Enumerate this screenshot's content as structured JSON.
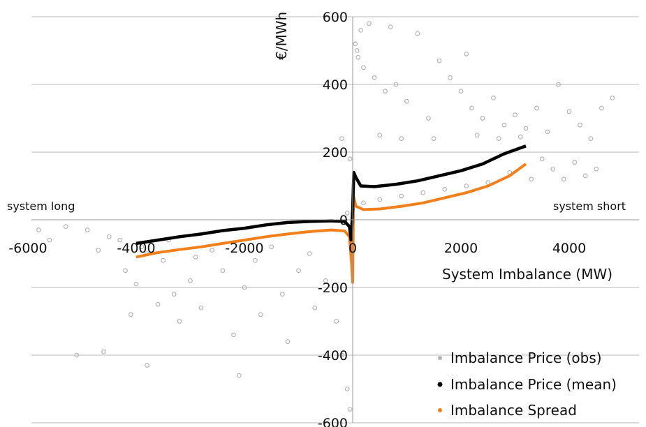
{
  "chart_data": {
    "type": "scatter",
    "title": "",
    "xlabel": "System Imbalance (MW)",
    "ylabel": "€/MWh",
    "xlim": [
      -6000,
      5000
    ],
    "ylim": [
      -600,
      600
    ],
    "x_ticks": [
      -6000,
      -4000,
      -2000,
      0,
      2000,
      4000
    ],
    "x_tick_labels": [
      "-6000",
      "-4000",
      "-2000",
      "0",
      "2000",
      "4000"
    ],
    "y_ticks": [
      -600,
      -400,
      -200,
      0,
      200,
      400,
      600
    ],
    "y_tick_labels": [
      "-600",
      "-400",
      "-200",
      "0",
      "200",
      "400",
      "600"
    ],
    "grid": "horizontal",
    "legend_position": "bottom-right",
    "annotations": {
      "left": "system long",
      "right": "system short"
    },
    "series": [
      {
        "name": "Imbalance Price (obs)",
        "style": "scatter",
        "color": "#b5b5b5",
        "points": [
          [
            -5300,
            -20
          ],
          [
            -4900,
            -30
          ],
          [
            -4700,
            -90
          ],
          [
            -4500,
            -50
          ],
          [
            -4300,
            -60
          ],
          [
            -4200,
            -150
          ],
          [
            -4000,
            -190
          ],
          [
            -3900,
            -80
          ],
          [
            -3800,
            -100
          ],
          [
            -3600,
            -250
          ],
          [
            -3500,
            -120
          ],
          [
            -3400,
            -60
          ],
          [
            -3200,
            -300
          ],
          [
            -3000,
            -180
          ],
          [
            -2900,
            -110
          ],
          [
            -2800,
            -260
          ],
          [
            -2600,
            -90
          ],
          [
            -2400,
            -150
          ],
          [
            -2200,
            -340
          ],
          [
            -2000,
            -200
          ],
          [
            -1800,
            -120
          ],
          [
            -1700,
            -280
          ],
          [
            -1500,
            -80
          ],
          [
            -1300,
            -220
          ],
          [
            -1200,
            -360
          ],
          [
            -1000,
            -150
          ],
          [
            -800,
            -100
          ],
          [
            -700,
            -260
          ],
          [
            -500,
            -180
          ],
          [
            -300,
            -300
          ],
          [
            -200,
            -400
          ],
          [
            -100,
            -500
          ],
          [
            -50,
            -560
          ],
          [
            -4600,
            -390
          ],
          [
            -5100,
            -400
          ],
          [
            -3800,
            -430
          ],
          [
            -2100,
            -460
          ],
          [
            -3300,
            -220
          ],
          [
            -4100,
            -280
          ],
          [
            -5600,
            -60
          ],
          [
            -5800,
            -30
          ],
          [
            50,
            520
          ],
          [
            80,
            500
          ],
          [
            100,
            480
          ],
          [
            200,
            450
          ],
          [
            400,
            420
          ],
          [
            600,
            380
          ],
          [
            800,
            400
          ],
          [
            1000,
            350
          ],
          [
            1200,
            550
          ],
          [
            1400,
            300
          ],
          [
            1600,
            470
          ],
          [
            1800,
            420
          ],
          [
            2000,
            380
          ],
          [
            2100,
            490
          ],
          [
            2200,
            330
          ],
          [
            2400,
            300
          ],
          [
            2600,
            360
          ],
          [
            2800,
            280
          ],
          [
            3000,
            310
          ],
          [
            3200,
            270
          ],
          [
            3400,
            330
          ],
          [
            3600,
            260
          ],
          [
            3800,
            400
          ],
          [
            4000,
            320
          ],
          [
            4200,
            280
          ],
          [
            4400,
            240
          ],
          [
            4600,
            330
          ],
          [
            4800,
            360
          ],
          [
            300,
            580
          ],
          [
            700,
            570
          ],
          [
            150,
            560
          ],
          [
            500,
            250
          ],
          [
            900,
            240
          ],
          [
            1500,
            240
          ],
          [
            2300,
            250
          ],
          [
            2700,
            240
          ],
          [
            3100,
            245
          ],
          [
            3500,
            180
          ],
          [
            3700,
            150
          ],
          [
            3900,
            120
          ],
          [
            4100,
            170
          ],
          [
            4300,
            130
          ],
          [
            4500,
            150
          ],
          [
            3300,
            120
          ],
          [
            2900,
            140
          ],
          [
            2500,
            110
          ],
          [
            2100,
            100
          ],
          [
            1700,
            90
          ],
          [
            1300,
            80
          ],
          [
            900,
            70
          ],
          [
            500,
            60
          ],
          [
            200,
            50
          ],
          [
            -100,
            20
          ],
          [
            -200,
            240
          ],
          [
            -50,
            180
          ]
        ]
      },
      {
        "name": "Imbalance Price (mean)",
        "style": "line",
        "color": "#000000",
        "points": [
          [
            -4000,
            -70
          ],
          [
            -3600,
            -60
          ],
          [
            -3200,
            -50
          ],
          [
            -2800,
            -42
          ],
          [
            -2400,
            -32
          ],
          [
            -2000,
            -25
          ],
          [
            -1600,
            -15
          ],
          [
            -1200,
            -8
          ],
          [
            -800,
            -5
          ],
          [
            -400,
            -3
          ],
          [
            -150,
            -5
          ],
          [
            -60,
            -20
          ],
          [
            -30,
            -60
          ],
          [
            0,
            30
          ],
          [
            20,
            140
          ],
          [
            60,
            125
          ],
          [
            150,
            100
          ],
          [
            400,
            98
          ],
          [
            800,
            105
          ],
          [
            1200,
            115
          ],
          [
            1600,
            130
          ],
          [
            2000,
            145
          ],
          [
            2400,
            165
          ],
          [
            2800,
            195
          ],
          [
            3200,
            218
          ]
        ]
      },
      {
        "name": "Imbalance Spread",
        "style": "line",
        "color": "#f07f1c",
        "points": [
          [
            -4000,
            -110
          ],
          [
            -3600,
            -97
          ],
          [
            -3200,
            -88
          ],
          [
            -2800,
            -80
          ],
          [
            -2400,
            -70
          ],
          [
            -2000,
            -60
          ],
          [
            -1600,
            -50
          ],
          [
            -1200,
            -42
          ],
          [
            -800,
            -35
          ],
          [
            -400,
            -30
          ],
          [
            -150,
            -33
          ],
          [
            -60,
            -50
          ],
          [
            -25,
            -120
          ],
          [
            0,
            -185
          ],
          [
            15,
            70
          ],
          [
            60,
            40
          ],
          [
            200,
            30
          ],
          [
            500,
            32
          ],
          [
            900,
            40
          ],
          [
            1300,
            50
          ],
          [
            1700,
            65
          ],
          [
            2100,
            80
          ],
          [
            2500,
            100
          ],
          [
            2900,
            130
          ],
          [
            3200,
            165
          ]
        ]
      }
    ]
  }
}
